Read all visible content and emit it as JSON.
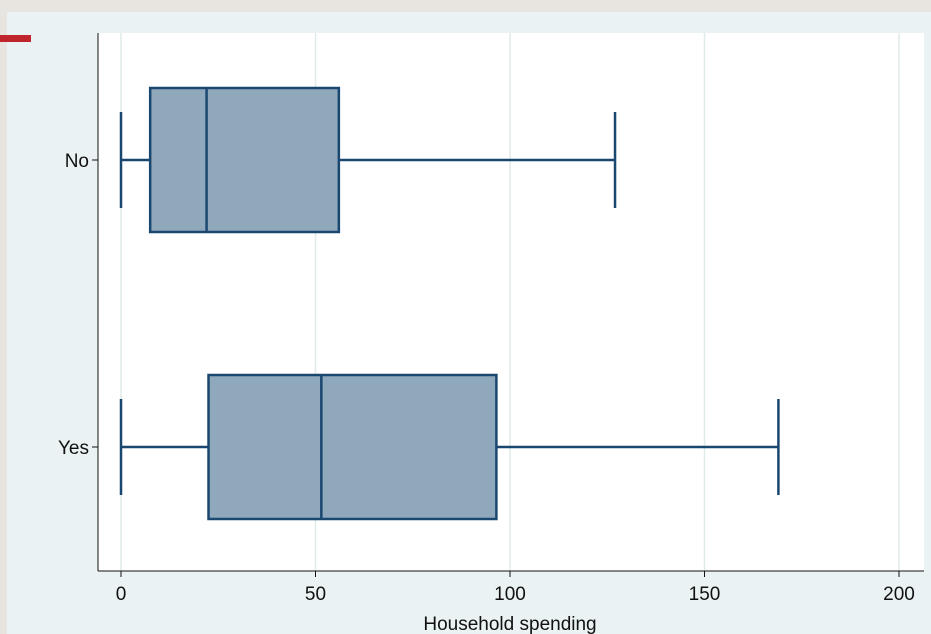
{
  "colors": {
    "background": "#eaf2f3",
    "accent": "#c0242c",
    "box_fill": "#90a8bb",
    "box_stroke": "#1a476f",
    "grid": "#dfeaea"
  },
  "chart_data": {
    "type": "boxplot",
    "orientation": "horizontal",
    "xlabel": "Household spending",
    "ylabel": "",
    "xlim": [
      0,
      200
    ],
    "xticks": [
      0,
      50,
      100,
      150,
      200
    ],
    "grid": true,
    "categories": [
      "No",
      "Yes"
    ],
    "boxes": [
      {
        "category": "No",
        "min": 0,
        "q1": 7.5,
        "median": 22,
        "q3": 56,
        "max": 127
      },
      {
        "category": "Yes",
        "min": 0,
        "q1": 22.5,
        "median": 51.5,
        "q3": 96.5,
        "max": 169
      }
    ]
  }
}
